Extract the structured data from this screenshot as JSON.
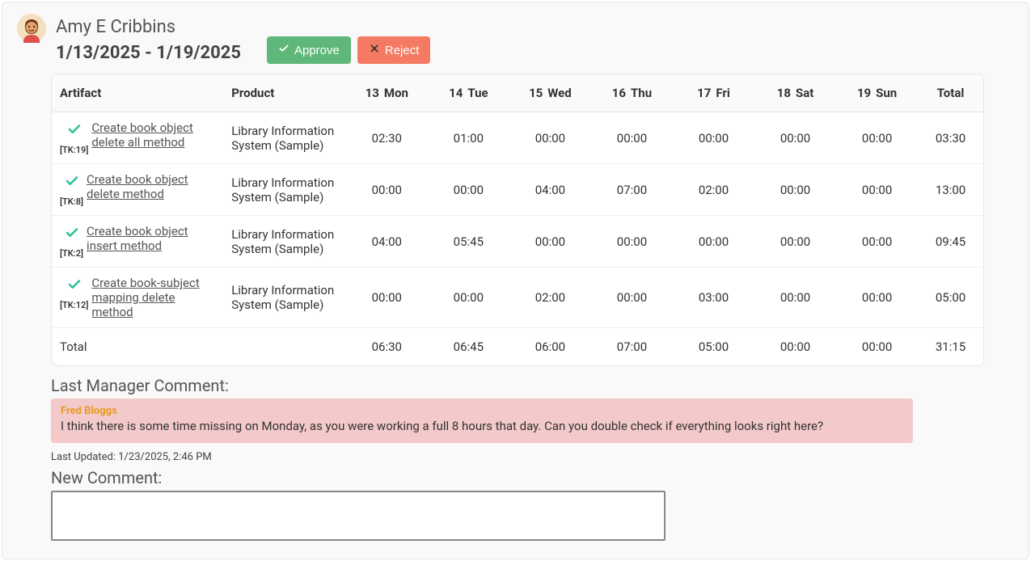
{
  "colors": {
    "approve_bg": "#5fb87a",
    "reject_bg": "#f47a63",
    "panel_bg": "#f9f9f9",
    "border": "#e5e5e5",
    "comment_bg": "#f3c9c9",
    "check": "#2fc29b",
    "author": "#e69a27"
  },
  "user": {
    "name": "Amy E Cribbins",
    "date_range": "1/13/2025 - 1/19/2025"
  },
  "actions": {
    "approve": "Approve",
    "reject": "Reject"
  },
  "columns": {
    "artifact": "Artifact",
    "product": "Product",
    "total": "Total",
    "days": [
      {
        "num": "13",
        "dow": "Mon"
      },
      {
        "num": "14",
        "dow": "Tue"
      },
      {
        "num": "15",
        "dow": "Wed"
      },
      {
        "num": "16",
        "dow": "Thu"
      },
      {
        "num": "17",
        "dow": "Fri"
      },
      {
        "num": "18",
        "dow": "Sat"
      },
      {
        "num": "19",
        "dow": "Sun"
      }
    ]
  },
  "rows": [
    {
      "tk": "[TK:19]",
      "link": "Create book object delete all method",
      "product": "Library Information System (Sample)",
      "times": [
        "02:30",
        "01:00",
        "00:00",
        "00:00",
        "00:00",
        "00:00",
        "00:00"
      ],
      "total": "03:30"
    },
    {
      "tk": "[TK:8]",
      "link": "Create book object delete method",
      "product": "Library Information System (Sample)",
      "times": [
        "00:00",
        "00:00",
        "04:00",
        "07:00",
        "02:00",
        "00:00",
        "00:00"
      ],
      "total": "13:00"
    },
    {
      "tk": "[TK:2]",
      "link": "Create book object insert method",
      "product": "Library Information System (Sample)",
      "times": [
        "04:00",
        "05:45",
        "00:00",
        "00:00",
        "00:00",
        "00:00",
        "00:00"
      ],
      "total": "09:45"
    },
    {
      "tk": "[TK:12]",
      "link": "Create book-subject mapping delete method",
      "product": "Library Information System (Sample)",
      "times": [
        "00:00",
        "00:00",
        "02:00",
        "00:00",
        "03:00",
        "00:00",
        "00:00"
      ],
      "total": "05:00"
    }
  ],
  "totals": {
    "label": "Total",
    "times": [
      "06:30",
      "06:45",
      "06:00",
      "07:00",
      "05:00",
      "00:00",
      "00:00"
    ],
    "grand": "31:15"
  },
  "comment": {
    "section_label": "Last Manager Comment:",
    "author": "Fred Bloggs",
    "text": "I think there is some time missing on Monday, as you were working a full 8 hours that day. Can you double check if everything looks right here?",
    "last_updated": "Last Updated: 1/23/2025, 2:46 PM",
    "new_label": "New Comment:"
  }
}
